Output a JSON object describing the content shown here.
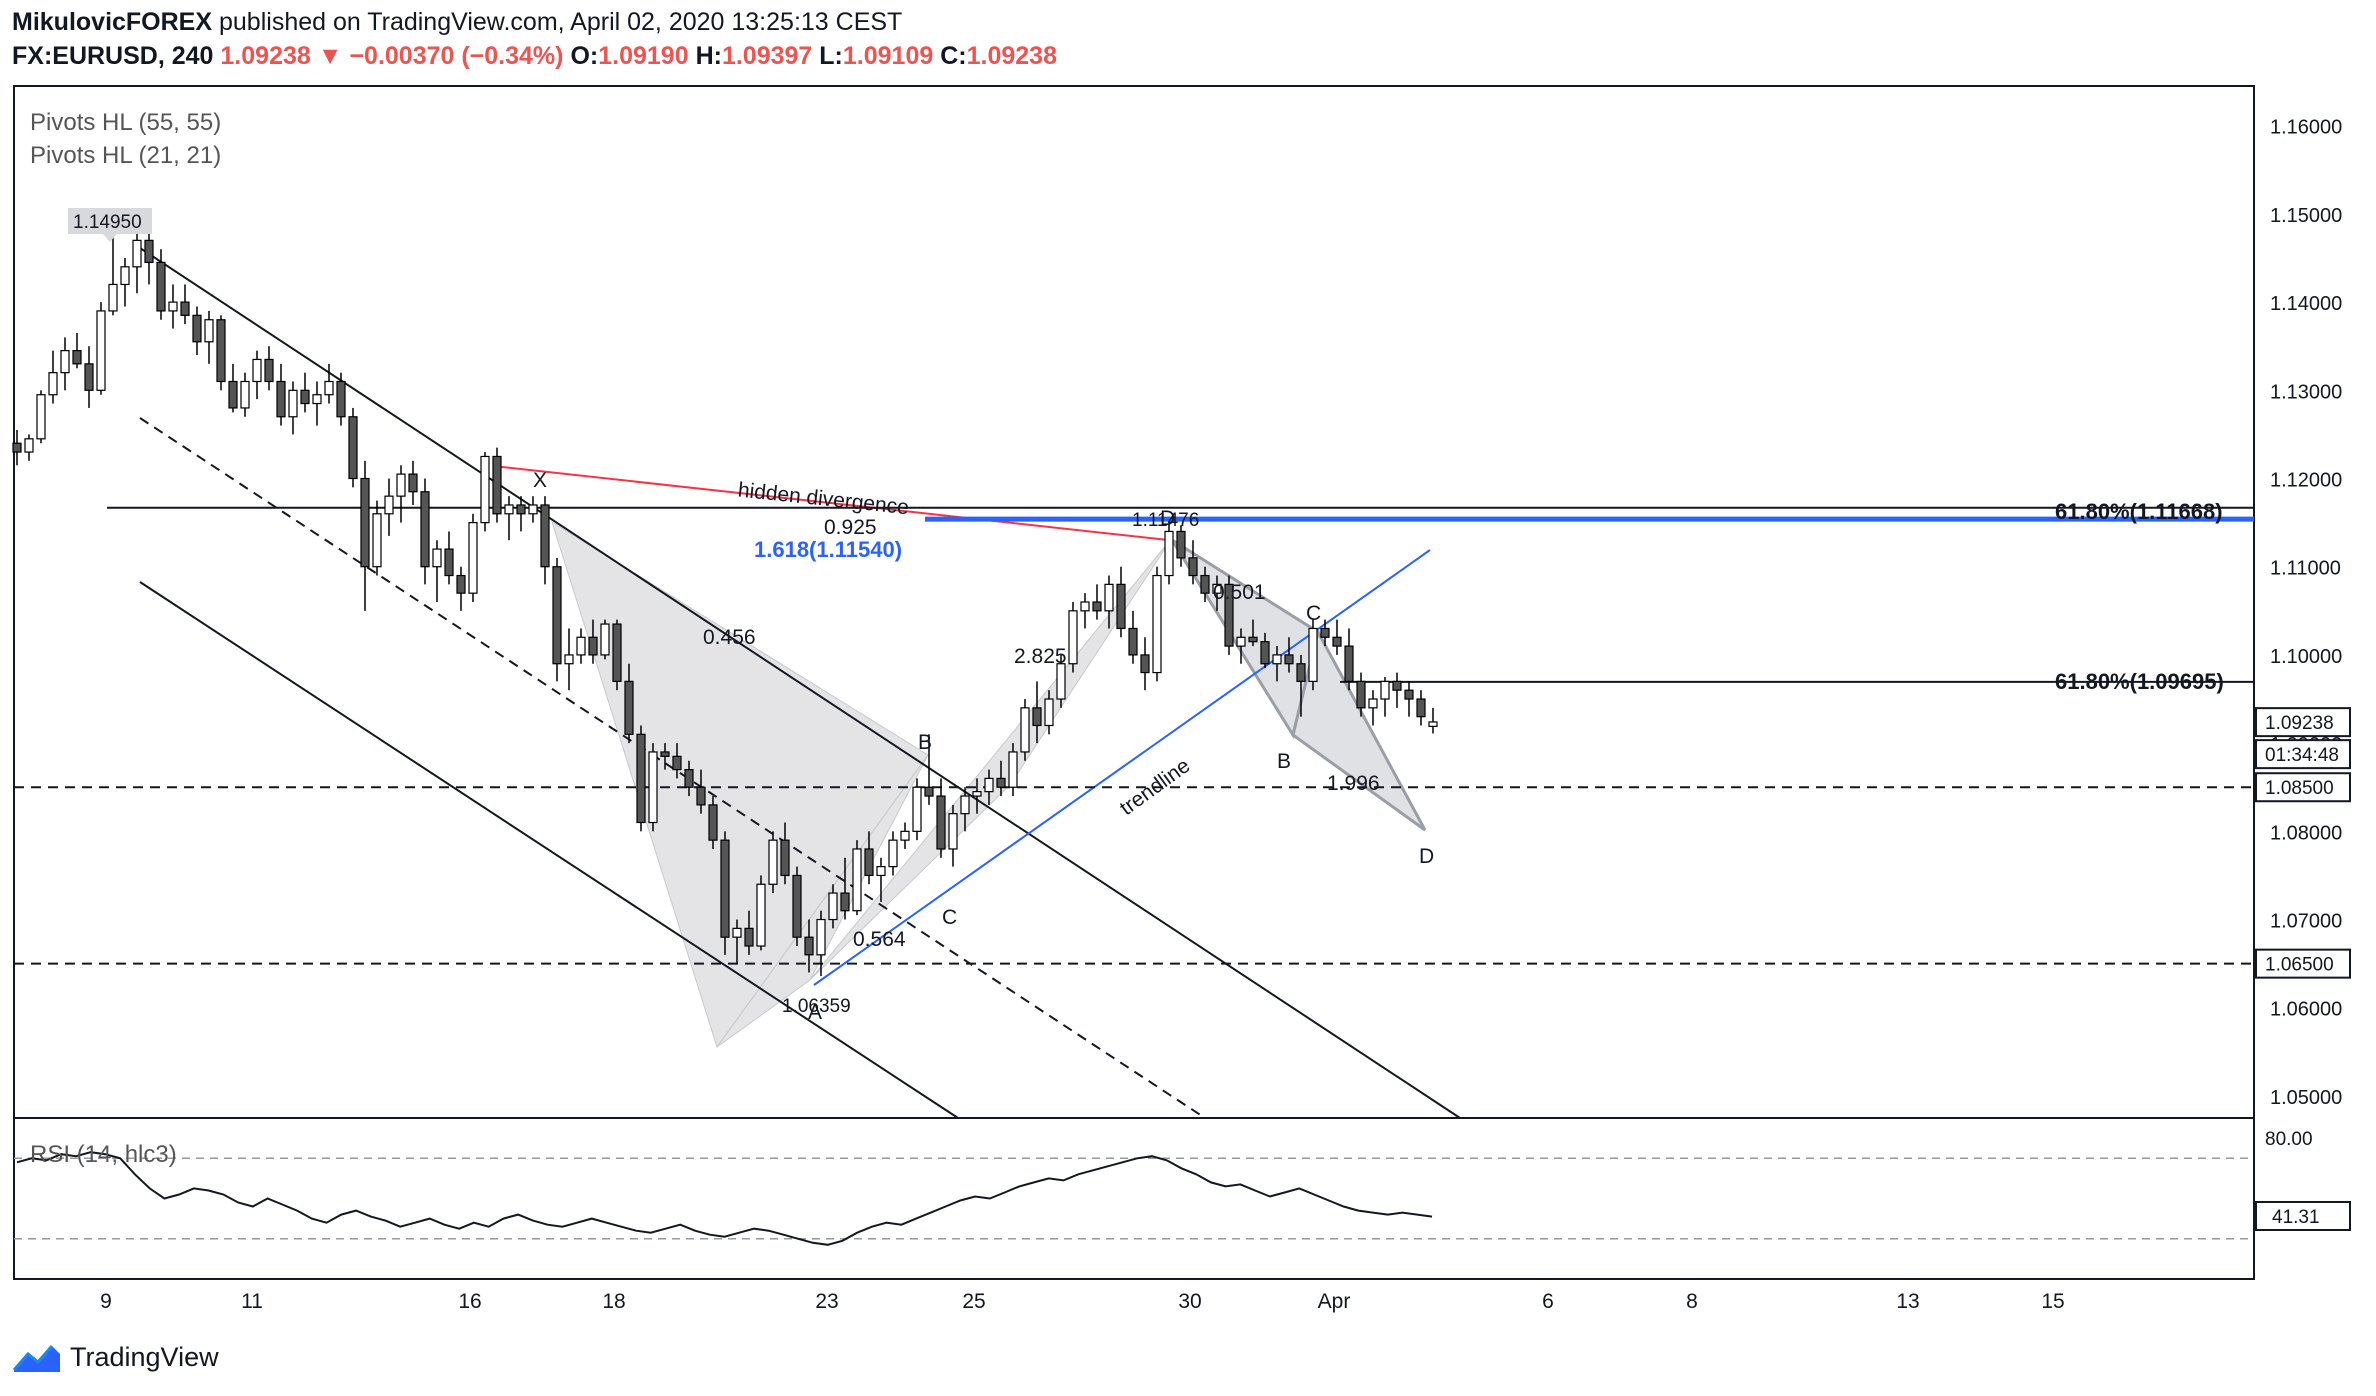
{
  "header": {
    "author": "MikulovicFOREX",
    "published": "published on TradingView.com, April 02, 2020 13:25:13 CEST",
    "symbol": "FX:EURUSD, 240",
    "last": "1.09238",
    "change": "−0.00370 (−0.34%)",
    "o_label": "O:",
    "o": "1.09190",
    "h_label": "H:",
    "h": "1.09397",
    "l_label": "L:",
    "l": "1.09109",
    "c_label": "C:",
    "c": "1.09238"
  },
  "indicators": [
    "Pivots HL (55, 55)",
    "Pivots HL (21, 21)"
  ],
  "rsi": {
    "label": "RSI (14, hlc3)",
    "levels": [
      "80.00"
    ],
    "current": "41.31",
    "upper": 70,
    "lower": 30,
    "values": [
      68,
      70,
      69,
      72,
      71,
      73,
      72,
      70,
      62,
      55,
      50,
      52,
      55,
      54,
      52,
      48,
      46,
      50,
      47,
      44,
      40,
      38,
      42,
      44,
      41,
      39,
      36,
      38,
      40,
      37,
      35,
      38,
      36,
      40,
      42,
      39,
      37,
      36,
      38,
      40,
      38,
      36,
      34,
      33,
      35,
      37,
      34,
      32,
      31,
      33,
      35,
      34,
      32,
      30,
      28,
      27,
      29,
      33,
      36,
      38,
      37,
      40,
      43,
      46,
      49,
      51,
      50,
      53,
      56,
      58,
      60,
      59,
      62,
      64,
      66,
      68,
      70,
      71,
      69,
      65,
      62,
      58,
      56,
      57,
      54,
      51,
      53,
      55,
      52,
      49,
      46,
      44,
      43,
      42,
      43,
      42,
      41
    ]
  },
  "price_axis": {
    "ticks": [
      "1.16000",
      "1.15000",
      "1.14000",
      "1.13000",
      "1.12000",
      "1.11000",
      "1.10000",
      "1.09000",
      "1.08000",
      "1.07000",
      "1.06000",
      "1.05000"
    ],
    "badges": [
      {
        "text": "1.09238",
        "color": "#131722"
      },
      {
        "text": "01:34:48",
        "color": "#131722"
      },
      {
        "text": "1.08500",
        "color": "#131722"
      },
      {
        "text": "1.06500",
        "color": "#131722"
      }
    ]
  },
  "time_axis": [
    "9",
    "11",
    "16",
    "18",
    "23",
    "25",
    "30",
    "Apr",
    "6",
    "8",
    "13",
    "15"
  ],
  "chart_data": {
    "type": "candlestick",
    "title": "FX:EURUSD, 240",
    "ylim": [
      1.0475,
      1.1645
    ],
    "candles": [
      [
        1.124,
        1.1255,
        1.1215,
        1.123
      ],
      [
        1.123,
        1.125,
        1.122,
        1.1245
      ],
      [
        1.1245,
        1.13,
        1.124,
        1.1295
      ],
      [
        1.1295,
        1.1345,
        1.1285,
        1.132
      ],
      [
        1.132,
        1.136,
        1.13,
        1.1345
      ],
      [
        1.1345,
        1.1365,
        1.1325,
        1.133
      ],
      [
        1.133,
        1.135,
        1.128,
        1.13
      ],
      [
        1.13,
        1.14,
        1.1295,
        1.139
      ],
      [
        1.139,
        1.1495,
        1.1385,
        1.142
      ],
      [
        1.142,
        1.145,
        1.1395,
        1.144
      ],
      [
        1.144,
        1.148,
        1.141,
        1.147
      ],
      [
        1.147,
        1.1485,
        1.142,
        1.1445
      ],
      [
        1.1445,
        1.146,
        1.138,
        1.139
      ],
      [
        1.139,
        1.142,
        1.137,
        1.14
      ],
      [
        1.14,
        1.142,
        1.1375,
        1.1385
      ],
      [
        1.1385,
        1.1395,
        1.134,
        1.1355
      ],
      [
        1.1355,
        1.139,
        1.133,
        1.138
      ],
      [
        1.138,
        1.1385,
        1.13,
        1.131
      ],
      [
        1.131,
        1.133,
        1.1275,
        1.128
      ],
      [
        1.128,
        1.132,
        1.127,
        1.131
      ],
      [
        1.131,
        1.1345,
        1.129,
        1.1335
      ],
      [
        1.1335,
        1.135,
        1.13,
        1.131
      ],
      [
        1.131,
        1.133,
        1.126,
        1.127
      ],
      [
        1.127,
        1.131,
        1.125,
        1.13
      ],
      [
        1.13,
        1.132,
        1.1275,
        1.1285
      ],
      [
        1.1285,
        1.131,
        1.126,
        1.1295
      ],
      [
        1.1295,
        1.133,
        1.1285,
        1.131
      ],
      [
        1.131,
        1.132,
        1.126,
        1.127
      ],
      [
        1.127,
        1.128,
        1.119,
        1.12
      ],
      [
        1.12,
        1.122,
        1.105,
        1.11
      ],
      [
        1.11,
        1.1175,
        1.109,
        1.116
      ],
      [
        1.116,
        1.12,
        1.1135,
        1.118
      ],
      [
        1.118,
        1.1215,
        1.115,
        1.1205
      ],
      [
        1.1205,
        1.122,
        1.117,
        1.1185
      ],
      [
        1.1185,
        1.12,
        1.108,
        1.11
      ],
      [
        1.11,
        1.113,
        1.106,
        1.112
      ],
      [
        1.112,
        1.114,
        1.108,
        1.109
      ],
      [
        1.109,
        1.11,
        1.105,
        1.107
      ],
      [
        1.107,
        1.116,
        1.106,
        1.115
      ],
      [
        1.115,
        1.123,
        1.114,
        1.1225
      ],
      [
        1.1225,
        1.1235,
        1.115,
        1.116
      ],
      [
        1.116,
        1.118,
        1.113,
        1.117
      ],
      [
        1.117,
        1.118,
        1.114,
        1.116
      ],
      [
        1.116,
        1.118,
        1.115,
        1.117
      ],
      [
        1.117,
        1.118,
        1.108,
        1.11
      ],
      [
        1.11,
        1.111,
        1.097,
        1.099
      ],
      [
        1.099,
        1.103,
        1.096,
        1.1
      ],
      [
        1.1,
        1.103,
        1.099,
        1.102
      ],
      [
        1.102,
        1.104,
        1.099,
        1.1
      ],
      [
        1.1,
        1.104,
        1.0995,
        1.1035
      ],
      [
        1.1035,
        1.104,
        1.096,
        1.097
      ],
      [
        1.097,
        1.099,
        1.09,
        1.091
      ],
      [
        1.091,
        1.092,
        1.08,
        1.081
      ],
      [
        1.081,
        1.09,
        1.08,
        1.089
      ],
      [
        1.089,
        1.09,
        1.087,
        1.0885
      ],
      [
        1.0885,
        1.09,
        1.086,
        1.087
      ],
      [
        1.087,
        1.088,
        1.084,
        1.085
      ],
      [
        1.085,
        1.087,
        1.082,
        1.083
      ],
      [
        1.083,
        1.084,
        1.078,
        1.079
      ],
      [
        1.079,
        1.08,
        1.066,
        1.068
      ],
      [
        1.068,
        1.07,
        1.065,
        1.069
      ],
      [
        1.069,
        1.071,
        1.066,
        1.067
      ],
      [
        1.067,
        1.075,
        1.0665,
        1.074
      ],
      [
        1.074,
        1.08,
        1.073,
        1.079
      ],
      [
        1.079,
        1.081,
        1.074,
        1.075
      ],
      [
        1.075,
        1.076,
        1.067,
        1.068
      ],
      [
        1.068,
        1.07,
        1.064,
        1.066
      ],
      [
        1.066,
        1.071,
        1.0636,
        1.07
      ],
      [
        1.07,
        1.074,
        1.069,
        1.073
      ],
      [
        1.073,
        1.077,
        1.07,
        1.071
      ],
      [
        1.071,
        1.079,
        1.0705,
        1.078
      ],
      [
        1.078,
        1.08,
        1.074,
        1.075
      ],
      [
        1.075,
        1.077,
        1.072,
        1.076
      ],
      [
        1.076,
        1.08,
        1.075,
        1.079
      ],
      [
        1.079,
        1.081,
        1.078,
        1.08
      ],
      [
        1.08,
        1.086,
        1.079,
        1.085
      ],
      [
        1.085,
        1.091,
        1.083,
        1.084
      ],
      [
        1.084,
        1.086,
        1.077,
        1.078
      ],
      [
        1.078,
        1.083,
        1.076,
        1.082
      ],
      [
        1.082,
        1.085,
        1.08,
        1.084
      ],
      [
        1.084,
        1.086,
        1.082,
        1.0845
      ],
      [
        1.0845,
        1.087,
        1.083,
        1.086
      ],
      [
        1.086,
        1.088,
        1.084,
        1.085
      ],
      [
        1.085,
        1.09,
        1.084,
        1.089
      ],
      [
        1.089,
        1.095,
        1.088,
        1.094
      ],
      [
        1.094,
        1.097,
        1.09,
        1.092
      ],
      [
        1.092,
        1.096,
        1.091,
        1.095
      ],
      [
        1.095,
        1.1,
        1.094,
        1.099
      ],
      [
        1.099,
        1.106,
        1.098,
        1.105
      ],
      [
        1.105,
        1.107,
        1.103,
        1.106
      ],
      [
        1.106,
        1.108,
        1.104,
        1.105
      ],
      [
        1.105,
        1.109,
        1.103,
        1.108
      ],
      [
        1.108,
        1.11,
        1.102,
        1.103
      ],
      [
        1.103,
        1.105,
        1.099,
        1.1
      ],
      [
        1.1,
        1.102,
        1.096,
        1.098
      ],
      [
        1.098,
        1.11,
        1.097,
        1.109
      ],
      [
        1.109,
        1.1148,
        1.108,
        1.114
      ],
      [
        1.114,
        1.1147,
        1.11,
        1.111
      ],
      [
        1.111,
        1.113,
        1.108,
        1.109
      ],
      [
        1.109,
        1.11,
        1.106,
        1.107
      ],
      [
        1.107,
        1.109,
        1.105,
        1.108
      ],
      [
        1.108,
        1.109,
        1.1,
        1.101
      ],
      [
        1.101,
        1.103,
        1.099,
        1.102
      ],
      [
        1.102,
        1.104,
        1.101,
        1.1015
      ],
      [
        1.1015,
        1.1025,
        1.0985,
        1.099
      ],
      [
        1.099,
        1.101,
        1.097,
        1.1
      ],
      [
        1.1,
        1.102,
        1.098,
        1.099
      ],
      [
        1.099,
        1.1,
        1.093,
        1.097
      ],
      [
        1.097,
        1.104,
        1.096,
        1.103
      ],
      [
        1.103,
        1.104,
        1.101,
        1.102
      ],
      [
        1.102,
        1.104,
        1.1,
        1.101
      ],
      [
        1.101,
        1.103,
        1.096,
        1.097
      ],
      [
        1.097,
        1.098,
        1.093,
        1.094
      ],
      [
        1.094,
        1.096,
        1.092,
        1.095
      ],
      [
        1.095,
        1.0975,
        1.093,
        1.097
      ],
      [
        1.097,
        1.098,
        1.094,
        1.096
      ],
      [
        1.096,
        1.097,
        1.093,
        1.095
      ],
      [
        1.095,
        1.096,
        1.092,
        1.093
      ],
      [
        1.0919,
        1.094,
        1.0911,
        1.0924
      ]
    ],
    "levels": [
      {
        "label": "61.80%(1.11668)",
        "price": 1.11668
      },
      {
        "label": "61.80%(1.09695)",
        "price": 1.09695
      },
      {
        "label": "1.618(1.11540)",
        "price": 1.1154
      },
      {
        "label": "",
        "price": 1.085
      },
      {
        "label": "",
        "price": 1.065
      }
    ],
    "pivots": [
      {
        "label": "1.14950",
        "price": 1.1495
      },
      {
        "label": "1.06359",
        "price": 1.06359
      },
      {
        "label": "1.11476",
        "price": 1.11476
      }
    ],
    "annotations": [
      "hidden divergence",
      "trendline",
      "X",
      "A",
      "B",
      "C",
      "D",
      "0.925",
      "0.456",
      "0.564",
      "2.825",
      "0.501",
      "1.996"
    ]
  }
}
